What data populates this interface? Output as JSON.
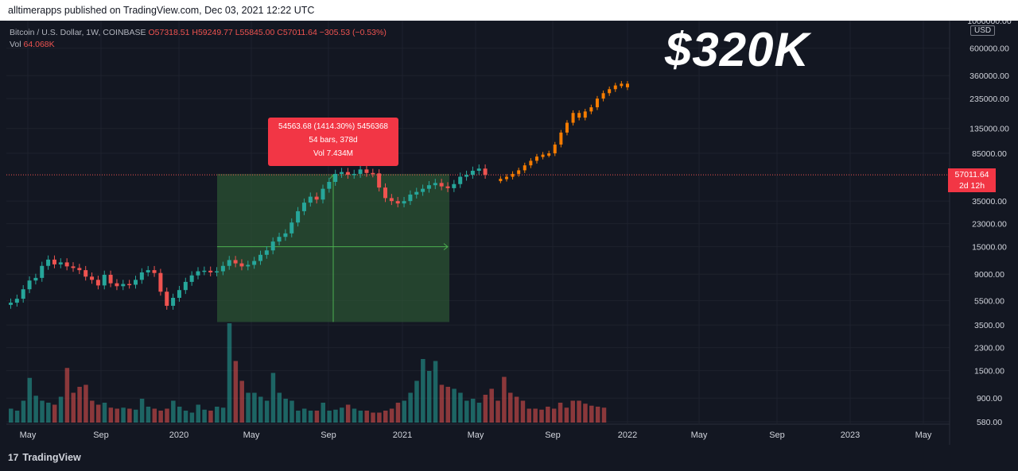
{
  "header": {
    "published_text": "alltimerapps published on TradingView.com, Dec 03, 2021 12:22 UTC"
  },
  "legend": {
    "symbol": "Bitcoin / U.S. Dollar, 1W, COINBASE",
    "open": "O57318.51",
    "high": "H59249.77",
    "low": "L55845.00",
    "close": "C57011.64",
    "change": "−305.53 (−0.53%)",
    "vol_label": "Vol",
    "vol_value": "64.068K"
  },
  "overlay_text": "$320K",
  "measure_tooltip": {
    "line1": "54563.68 (1414.30%) 5456368",
    "line2": "54 bars, 378d",
    "line3": "Vol 7.434M"
  },
  "price_axis": {
    "currency": "USD",
    "labels": [
      "1000000.00",
      "600000.00",
      "360000.00",
      "235000.00",
      "135000.00",
      "85000.00",
      "35000.00",
      "23000.00",
      "15000.00",
      "9000.00",
      "5500.00",
      "3500.00",
      "2300.00",
      "1500.00",
      "900.00",
      "580.00"
    ],
    "current_price": "57011.64",
    "countdown": "2d 12h"
  },
  "time_axis": {
    "labels": [
      "May",
      "Sep",
      "2020",
      "May",
      "Sep",
      "2021",
      "May",
      "Sep",
      "2022",
      "May",
      "Sep",
      "2023",
      "May"
    ]
  },
  "footer": {
    "brand": "TradingView"
  },
  "colors": {
    "background": "#131722",
    "grid": "#1e222d",
    "up": "#26a69a",
    "down": "#ef5350",
    "projection": "#f57c00",
    "measure_fill": "#2e5a36",
    "measure_line": "#4caf50",
    "price_line": "#ef5350"
  },
  "chart_data": {
    "type": "candlestick",
    "scale": "log",
    "ylim": [
      580,
      1000000
    ],
    "series": [
      {
        "name": "",
        "role": "historical",
        "period": "1W",
        "close_levels": [
          5300,
          5700,
          6800,
          8000,
          8400,
          10500,
          11800,
          10800,
          11200,
          10400,
          10100,
          9700,
          8600,
          8100,
          7300,
          8900,
          7600,
          7200,
          7500,
          7400,
          8100,
          9300,
          9700,
          9200,
          6500,
          5000,
          5800,
          6700,
          7800,
          8800,
          9500,
          9600,
          9300,
          9500,
          10500,
          11700,
          11000,
          10400,
          10700,
          11500,
          12900,
          14000,
          16500,
          18000,
          19200,
          23500,
          29000,
          34000,
          38000,
          36000,
          44000,
          50000,
          58000,
          60000,
          57000,
          58000,
          63000,
          59000,
          58500,
          45000,
          37000,
          35000,
          33500,
          35000,
          39500,
          41500,
          44000,
          47000,
          49000,
          46000,
          44500,
          48000,
          55000,
          57000,
          61500,
          64000,
          57011.64
        ]
      },
      {
        "name": "",
        "role": "projection",
        "close_levels": [
          53000,
          55000,
          58000,
          62000,
          68000,
          74000,
          80000,
          83000,
          85000,
          100000,
          125000,
          150000,
          180000,
          165000,
          185000,
          200000,
          235000,
          260000,
          280000,
          300000,
          310000,
          290000
        ]
      }
    ],
    "volume_relative": [
      0.14,
      0.12,
      0.22,
      0.45,
      0.27,
      0.22,
      0.2,
      0.18,
      0.26,
      0.55,
      0.3,
      0.36,
      0.38,
      0.22,
      0.18,
      0.2,
      0.15,
      0.14,
      0.15,
      0.14,
      0.13,
      0.24,
      0.16,
      0.14,
      0.12,
      0.14,
      0.22,
      0.16,
      0.12,
      0.1,
      0.18,
      0.13,
      0.12,
      0.16,
      0.15,
      1.0,
      0.62,
      0.42,
      0.3,
      0.3,
      0.26,
      0.22,
      0.5,
      0.3,
      0.24,
      0.22,
      0.12,
      0.14,
      0.12,
      0.12,
      0.2,
      0.12,
      0.13,
      0.15,
      0.18,
      0.14,
      0.12,
      0.12,
      0.1,
      0.1,
      0.12,
      0.14,
      0.2,
      0.22,
      0.3,
      0.42,
      0.64,
      0.52,
      0.62,
      0.38,
      0.36,
      0.34,
      0.3,
      0.22,
      0.24,
      0.2,
      0.28,
      0.34,
      0.22,
      0.46,
      0.3,
      0.26,
      0.22,
      0.14,
      0.14,
      0.13,
      0.16,
      0.14,
      0.2,
      0.15,
      0.22,
      0.22,
      0.19,
      0.17,
      0.16,
      0.15
    ],
    "current_price": 57011.64,
    "measurement": {
      "change": 54563.68,
      "change_percent": 1414.3,
      "bars": 54,
      "days": 378,
      "volume": "7.434M"
    }
  }
}
